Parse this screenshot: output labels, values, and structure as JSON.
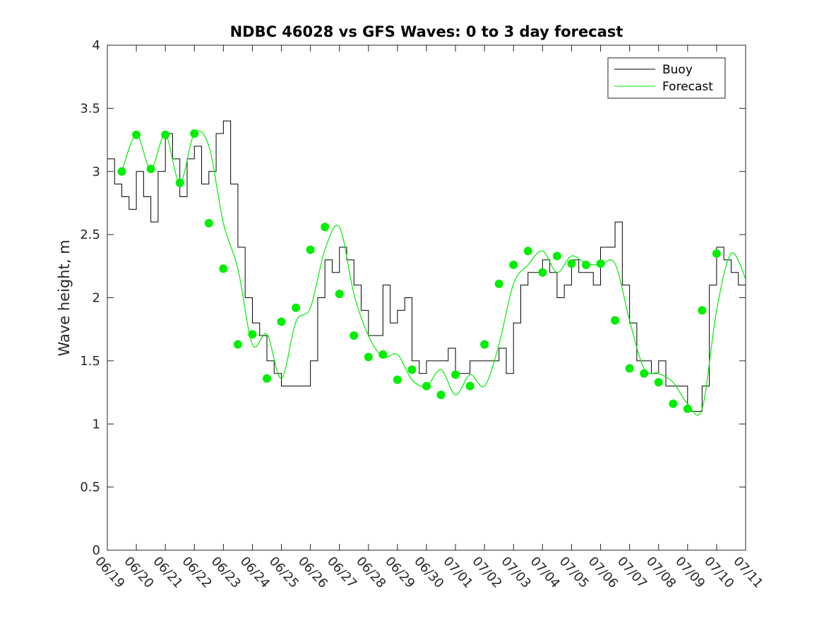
{
  "colors": {
    "buoy": "#000000",
    "forecast": "#00ee00",
    "marker": "#00ee00"
  },
  "chart_data": {
    "type": "line",
    "title": "NDBC 46028 vs GFS Waves: 0 to 3 day forecast",
    "xlabel": "",
    "ylabel": "Wave height, m",
    "x_unit": "days from 06/19",
    "xlim": [
      0,
      22
    ],
    "ylim": [
      0,
      4
    ],
    "grid": false,
    "legend_position": "top-right",
    "yticks": [
      "0",
      "0.5",
      "1",
      "1.5",
      "2",
      "2.5",
      "3",
      "3.5",
      "4"
    ],
    "xticks": [
      "06/19",
      "06/20",
      "06/21",
      "06/22",
      "06/23",
      "06/24",
      "06/25",
      "06/26",
      "06/27",
      "06/28",
      "06/29",
      "06/30",
      "07/01",
      "07/02",
      "07/03",
      "07/04",
      "07/05",
      "07/06",
      "07/07",
      "07/08",
      "07/09",
      "07/10",
      "07/11"
    ],
    "legend": [
      "Buoy",
      "Forecast"
    ],
    "series": [
      {
        "name": "Buoy",
        "x": [
          0,
          0.25,
          0.5,
          0.75,
          1,
          1.25,
          1.5,
          1.75,
          2,
          2.25,
          2.5,
          2.75,
          3,
          3.25,
          3.5,
          3.75,
          4,
          4.25,
          4.5,
          4.75,
          5,
          5.25,
          5.5,
          5.75,
          6,
          6.25,
          6.5,
          6.75,
          7,
          7.25,
          7.5,
          7.75,
          8,
          8.25,
          8.5,
          8.75,
          9,
          9.25,
          9.5,
          9.75,
          10,
          10.25,
          10.5,
          10.75,
          11,
          11.25,
          11.5,
          11.75,
          12,
          12.25,
          12.5,
          12.75,
          13,
          13.25,
          13.5,
          13.75,
          14,
          14.25,
          14.5,
          14.75,
          15,
          15.25,
          15.5,
          15.75,
          16,
          16.25,
          16.5,
          16.75,
          17,
          17.25,
          17.5,
          17.75,
          18,
          18.25,
          18.5,
          18.75,
          19,
          19.25,
          19.5,
          19.75,
          20,
          20.25,
          20.5,
          20.75,
          21,
          21.25,
          21.5,
          21.75,
          22
        ],
        "y": [
          3.1,
          2.9,
          2.8,
          2.7,
          3.0,
          2.8,
          2.6,
          3.0,
          3.3,
          3.1,
          2.8,
          3.1,
          3.2,
          2.9,
          3.0,
          3.3,
          3.4,
          2.9,
          2.4,
          2.0,
          1.8,
          1.7,
          1.5,
          1.4,
          1.3,
          1.3,
          1.3,
          1.3,
          1.5,
          2.0,
          2.3,
          2.2,
          2.4,
          2.3,
          2.1,
          1.9,
          1.7,
          1.7,
          2.1,
          1.8,
          1.9,
          2.0,
          1.5,
          1.4,
          1.5,
          1.5,
          1.5,
          1.6,
          1.4,
          1.4,
          1.5,
          1.5,
          1.5,
          1.5,
          1.6,
          1.4,
          1.8,
          2.1,
          2.2,
          2.2,
          2.3,
          2.2,
          2.0,
          2.1,
          2.3,
          2.2,
          2.2,
          2.1,
          2.4,
          2.4,
          2.6,
          2.1,
          1.8,
          1.5,
          1.5,
          1.4,
          1.5,
          1.3,
          1.3,
          1.3,
          1.1,
          1.1,
          1.3,
          2.1,
          2.4,
          2.3,
          2.2,
          2.1,
          2.1
        ]
      },
      {
        "name": "Forecast",
        "x": [
          0.5,
          1,
          1.5,
          2,
          2.5,
          3,
          3.5,
          4,
          4.5,
          5,
          5.5,
          6,
          6.5,
          7,
          7.5,
          8,
          8.5,
          9,
          9.5,
          10,
          10.5,
          11,
          11.5,
          12,
          12.5,
          13,
          13.5,
          14,
          14.5,
          15,
          15.5,
          16,
          16.5,
          17,
          17.5,
          18,
          18.5,
          19,
          19.5,
          20,
          20.5,
          21,
          21.5,
          22
        ],
        "y": [
          3.0,
          3.29,
          3.02,
          3.29,
          2.91,
          3.3,
          3.2,
          2.59,
          2.23,
          1.63,
          1.71,
          1.36,
          1.81,
          1.92,
          2.38,
          2.56,
          2.03,
          1.7,
          1.53,
          1.55,
          1.35,
          1.3,
          1.43,
          1.23,
          1.39,
          1.3,
          1.63,
          2.11,
          2.26,
          2.37,
          2.2,
          2.33,
          2.27,
          2.26,
          2.27,
          1.82,
          1.44,
          1.4,
          1.33,
          1.16,
          1.12,
          1.9,
          2.35,
          2.15
        ]
      }
    ],
    "markers": {
      "x": [
        0.5,
        1,
        1.5,
        2,
        2.5,
        3,
        3.5,
        4,
        4.5,
        5,
        5.5,
        6,
        6.5,
        7,
        7.5,
        8,
        8.5,
        9,
        9.5,
        10,
        10.5,
        11,
        11.5,
        12,
        12.5,
        13,
        13.5,
        14,
        14.5,
        15,
        15.5,
        16,
        16.5,
        17,
        17.5,
        18,
        18.5,
        19,
        19.5,
        20,
        20.5,
        21
      ],
      "y": [
        3.0,
        3.29,
        3.02,
        3.29,
        2.91,
        3.3,
        2.59,
        2.23,
        1.63,
        1.71,
        1.36,
        1.81,
        1.92,
        2.38,
        2.56,
        2.03,
        1.7,
        1.53,
        1.55,
        1.35,
        1.43,
        1.3,
        1.23,
        1.39,
        1.3,
        1.63,
        2.11,
        2.26,
        2.37,
        2.2,
        2.33,
        2.27,
        2.26,
        2.27,
        1.82,
        1.44,
        1.4,
        1.33,
        1.16,
        1.12,
        1.9,
        2.35
      ]
    }
  }
}
